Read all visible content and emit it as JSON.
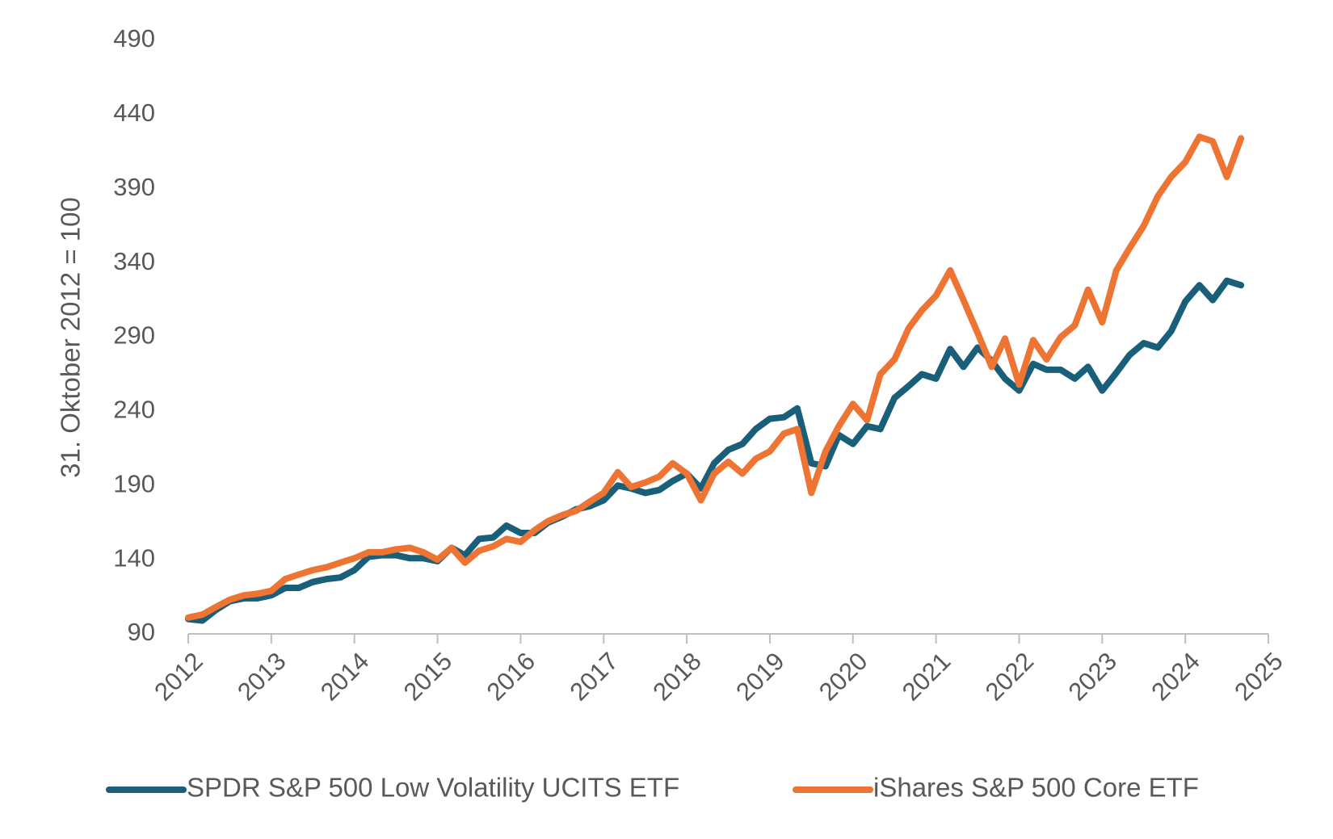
{
  "chart_data": {
    "type": "line",
    "y_label": "31. Oktober 2012 = 100",
    "x": [
      2012,
      2012.17,
      2012.33,
      2012.5,
      2012.67,
      2012.83,
      2013,
      2013.17,
      2013.33,
      2013.5,
      2013.67,
      2013.83,
      2014,
      2014.17,
      2014.33,
      2014.5,
      2014.67,
      2014.83,
      2015,
      2015.17,
      2015.33,
      2015.5,
      2015.67,
      2015.83,
      2016,
      2016.17,
      2016.33,
      2016.5,
      2016.67,
      2016.83,
      2017,
      2017.17,
      2017.33,
      2017.5,
      2017.67,
      2017.83,
      2018,
      2018.17,
      2018.33,
      2018.5,
      2018.67,
      2018.83,
      2019,
      2019.17,
      2019.33,
      2019.5,
      2019.67,
      2019.83,
      2020,
      2020.17,
      2020.33,
      2020.5,
      2020.67,
      2020.83,
      2021,
      2021.17,
      2021.33,
      2021.5,
      2021.67,
      2021.83,
      2022,
      2022.17,
      2022.33,
      2022.5,
      2022.67,
      2022.83,
      2023,
      2023.17,
      2023.33,
      2023.5,
      2023.67,
      2023.83,
      2024,
      2024.17,
      2024.33,
      2024.5,
      2024.67
    ],
    "series": [
      {
        "name": "SPDR S&P 500 Low Volatility UCITS ETF",
        "color": "#1a5f7a",
        "values": [
          100,
          99,
          106,
          112,
          114,
          114,
          116,
          121,
          121,
          125,
          127,
          128,
          133,
          142,
          143,
          143,
          141,
          141,
          139,
          148,
          143,
          154,
          155,
          163,
          158,
          158,
          165,
          169,
          174,
          176,
          180,
          190,
          188,
          185,
          187,
          193,
          198,
          188,
          205,
          214,
          218,
          228,
          235,
          236,
          242,
          205,
          203,
          224,
          218,
          230,
          228,
          249,
          257,
          265,
          262,
          282,
          270,
          283,
          274,
          262,
          254,
          272,
          268,
          268,
          262,
          270,
          254,
          266,
          278,
          286,
          283,
          294,
          314,
          325,
          315,
          328,
          325
        ]
      },
      {
        "name": "iShares S&P 500 Core ETF",
        "color": "#ed7432",
        "values": [
          101,
          103,
          108,
          113,
          116,
          117,
          119,
          127,
          130,
          133,
          135,
          138,
          141,
          145,
          145,
          147,
          148,
          145,
          140,
          148,
          138,
          146,
          149,
          154,
          152,
          160,
          166,
          170,
          173,
          179,
          185,
          199,
          189,
          192,
          196,
          205,
          198,
          180,
          198,
          206,
          198,
          208,
          213,
          225,
          228,
          185,
          213,
          230,
          245,
          234,
          265,
          275,
          296,
          308,
          318,
          335,
          315,
          293,
          270,
          289,
          258,
          288,
          275,
          290,
          298,
          322,
          300,
          335,
          350,
          365,
          385,
          398,
          408,
          425,
          422,
          398,
          424
        ]
      }
    ],
    "xlim": [
      2012,
      2025
    ],
    "xticks": [
      2012,
      2013,
      2014,
      2015,
      2016,
      2017,
      2018,
      2019,
      2020,
      2021,
      2022,
      2023,
      2024,
      2025
    ],
    "ylim": [
      90,
      490
    ],
    "yticks": [
      90,
      140,
      190,
      240,
      290,
      340,
      390,
      440,
      490
    ],
    "grid": false,
    "legend": "bottom"
  }
}
